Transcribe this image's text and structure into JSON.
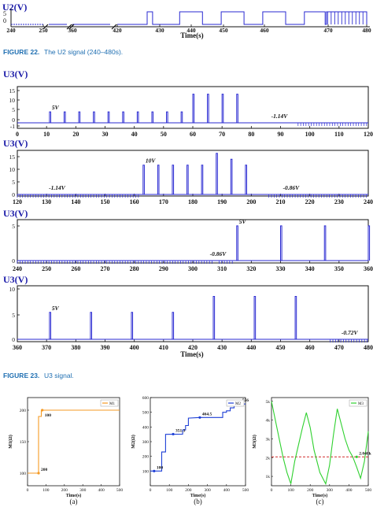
{
  "colors": {
    "signal": "#2a2ad2",
    "caption": "#1f6fb2",
    "m1": "#f59a23",
    "m2": "#1d3fd6",
    "m3": "#2fd12f",
    "threshold": "#cc1111"
  },
  "figure22": {
    "ylabel": "U2(V)",
    "y_ticks": [
      "5",
      "0"
    ],
    "x_ticks": [
      "240",
      "250",
      "360",
      "420",
      "430",
      "440",
      "450",
      "460",
      "470",
      "480"
    ],
    "xlabel": "Time(s)",
    "caption_label": "FIGURE 22.",
    "caption_text": "The U2 signal (240–480s)."
  },
  "figure23": {
    "caption_label": "FIGURE 23.",
    "caption_text": "U3 signal.",
    "panels": [
      {
        "ylabel": "U3(V)",
        "x_ticks": [
          "0",
          "10",
          "20",
          "30",
          "40",
          "50",
          "60",
          "70",
          "80",
          "90",
          "100",
          "110",
          "120"
        ],
        "y_ticks": [
          "15",
          "10",
          "5",
          "0",
          "-1"
        ],
        "annotations": [
          "5V",
          "-1.14V"
        ]
      },
      {
        "ylabel": "U3(V)",
        "x_ticks": [
          "120",
          "130",
          "140",
          "150",
          "160",
          "170",
          "180",
          "190",
          "200",
          "210",
          "220",
          "230",
          "240"
        ],
        "y_ticks": [
          "15",
          "10",
          "5",
          "0"
        ],
        "annotations": [
          "-1.14V",
          "10V",
          "-0.86V"
        ]
      },
      {
        "ylabel": "U3(V)",
        "x_ticks": [
          "240",
          "250",
          "260",
          "270",
          "280",
          "290",
          "300",
          "310",
          "320",
          "330",
          "340",
          "350",
          "360"
        ],
        "y_ticks": [
          "5",
          "0"
        ],
        "annotations": [
          "-0.86V",
          "5V"
        ]
      },
      {
        "ylabel": "U3(V)",
        "x_ticks": [
          "360",
          "370",
          "380",
          "390",
          "400",
          "410",
          "420",
          "430",
          "440",
          "450",
          "460",
          "470",
          "480"
        ],
        "y_ticks": [
          "10",
          "5",
          "0"
        ],
        "annotations": [
          "5V",
          "-0.72V"
        ],
        "xlabel": "Time(s)"
      }
    ]
  },
  "figure24": {
    "panels": [
      {
        "legend": "M1",
        "ylabel": "M1(Ω)",
        "xlabel": "Time(s)",
        "sublabel": "(a)",
        "x_ticks": [
          "0",
          "100",
          "200",
          "300",
          "400",
          "500"
        ],
        "y_ticks": [
          "100",
          "150",
          "200"
        ],
        "annotations": [
          "200",
          "100"
        ]
      },
      {
        "legend": "M2",
        "ylabel": "M2(Ω)",
        "xlabel": "Time(s)",
        "sublabel": "(b)",
        "x_ticks": [
          "0",
          "100",
          "200",
          "300",
          "400",
          "500"
        ],
        "y_ticks": [
          "100",
          "200",
          "300",
          "400",
          "500",
          "600"
        ],
        "annotations": [
          "100",
          "351.3",
          "464.5",
          "556"
        ]
      },
      {
        "legend": "M3",
        "ylabel": "M3(Ω)",
        "xlabel": "Time(s)",
        "sublabel": "(c)",
        "x_ticks": [
          "0",
          "100",
          "200",
          "300",
          "400",
          "500"
        ],
        "y_ticks": [
          "5k",
          "4k",
          "3k",
          "2k",
          "1k"
        ],
        "annotations": [
          "2.040k"
        ]
      }
    ]
  },
  "chart_data": [
    {
      "type": "line",
      "title": "",
      "xlabel": "Time(s)",
      "ylabel": "U2(V)",
      "ylim": [
        0,
        5
      ],
      "axis_breaks": [
        "250-360",
        "360-420"
      ],
      "pulses": [
        [
          427.2,
          428.5
        ],
        [
          435,
          440.5
        ],
        [
          445,
          450.5
        ],
        [
          455,
          460.5
        ],
        [
          465,
          470
        ],
        [
          470.3,
          480
        ]
      ],
      "high_level": 5,
      "low_level": 0
    },
    {
      "type": "line",
      "xlabel": "",
      "ylabel": "U3(V)",
      "xlim": [
        0,
        120
      ],
      "ylim": [
        -1.5,
        15
      ],
      "pulse_times": [
        11,
        16,
        21,
        26,
        31,
        36,
        41,
        46,
        51,
        56,
        60,
        65,
        70,
        75
      ],
      "pulse_peaks": [
        5,
        5,
        5,
        5,
        5,
        5,
        5,
        5,
        5,
        5,
        12,
        12,
        12,
        12
      ],
      "annotations": [
        {
          "x": 11,
          "y": 5,
          "text": "5V"
        },
        {
          "x": 86,
          "y": -1.14,
          "text": "-1.14V"
        }
      ]
    },
    {
      "type": "line",
      "ylabel": "U3(V)",
      "xlim": [
        120,
        240
      ],
      "ylim": [
        -0.5,
        15
      ],
      "pulse_times": [
        163,
        168,
        173,
        178,
        183,
        188,
        193,
        198
      ],
      "pulse_peaks": [
        10,
        10,
        10,
        10,
        10,
        14,
        12,
        10
      ],
      "annotations": [
        {
          "x": 130,
          "y": -1.14,
          "text": "-1.14V"
        },
        {
          "x": 163,
          "y": 10,
          "text": "10V"
        },
        {
          "x": 210,
          "y": -0.86,
          "text": "-0.86V"
        }
      ]
    },
    {
      "type": "line",
      "ylabel": "U3(V)",
      "xlim": [
        240,
        360
      ],
      "ylim": [
        -1,
        6
      ],
      "pulse_times": [
        315,
        330,
        345,
        360
      ],
      "pulse_peaks": [
        5,
        5,
        5,
        5
      ],
      "annotations": [
        {
          "x": 305,
          "y": -0.86,
          "text": "-0.86V"
        },
        {
          "x": 315,
          "y": 5,
          "text": "5V"
        }
      ]
    },
    {
      "type": "line",
      "xlabel": "Time(s)",
      "ylabel": "U3(V)",
      "xlim": [
        360,
        480
      ],
      "ylim": [
        -0.5,
        10
      ],
      "pulse_times": [
        371,
        385,
        399,
        413,
        427,
        441,
        455
      ],
      "pulse_peaks": [
        5,
        5,
        5,
        5,
        8,
        8,
        8
      ],
      "annotations": [
        {
          "x": 371,
          "y": 5,
          "text": "5V"
        },
        {
          "x": 470,
          "y": -0.72,
          "text": "-0.72V"
        }
      ]
    },
    {
      "type": "line",
      "xlabel": "Time(s)",
      "ylabel": "M1(Ω)",
      "xlim": [
        0,
        500
      ],
      "ylim": [
        80,
        220
      ],
      "series": [
        {
          "name": "M1",
          "x": [
            0,
            60,
            60,
            75,
            75,
            500
          ],
          "y": [
            100,
            100,
            190,
            190,
            200,
            200
          ]
        }
      ],
      "annotations": [
        {
          "x": 60,
          "y": 100,
          "text": "100"
        },
        {
          "x": 80,
          "y": 200,
          "text": "200"
        }
      ]
    },
    {
      "type": "line",
      "xlabel": "Time(s)",
      "ylabel": "M2(Ω)",
      "xlim": [
        0,
        500
      ],
      "ylim": [
        0,
        600
      ],
      "series": [
        {
          "name": "M2",
          "x": [
            0,
            60,
            60,
            80,
            80,
            170,
            170,
            185,
            185,
            200,
            200,
            260,
            260,
            380,
            380,
            400,
            400,
            420,
            420,
            440,
            440,
            470,
            470,
            500
          ],
          "y": [
            100,
            100,
            230,
            230,
            350,
            351.3,
            380,
            380,
            410,
            410,
            460,
            464.5,
            464.5,
            464.5,
            500,
            500,
            510,
            510,
            530,
            530,
            556,
            556,
            556,
            556
          ]
        }
      ],
      "annotations": [
        {
          "x": 20,
          "y": 100,
          "text": "100"
        },
        {
          "x": 120,
          "y": 351.3,
          "text": "351.3"
        },
        {
          "x": 260,
          "y": 464.5,
          "text": "464.5"
        },
        {
          "x": 470,
          "y": 556,
          "text": "556"
        }
      ]
    },
    {
      "type": "line",
      "xlabel": "Time(s)",
      "ylabel": "M3(Ω)",
      "xlim": [
        0,
        500
      ],
      "ylim": [
        500,
        5200
      ],
      "threshold": 2040,
      "series": [
        {
          "name": "M3",
          "x": [
            0,
            20,
            40,
            60,
            80,
            100,
            120,
            160,
            180,
            200,
            220,
            250,
            280,
            300,
            320,
            340,
            360,
            380,
            400,
            420,
            440,
            460,
            480,
            500
          ],
          "y": [
            5000,
            4000,
            3000,
            2000,
            1200,
            600,
            1800,
            3600,
            4400,
            3600,
            2400,
            1200,
            600,
            1600,
            3200,
            4600,
            3800,
            3000,
            2400,
            2040,
            1500,
            900,
            1800,
            3400
          ]
        }
      ],
      "annotations": [
        {
          "x": 440,
          "y": 2040,
          "text": "2.040k"
        }
      ]
    }
  ]
}
